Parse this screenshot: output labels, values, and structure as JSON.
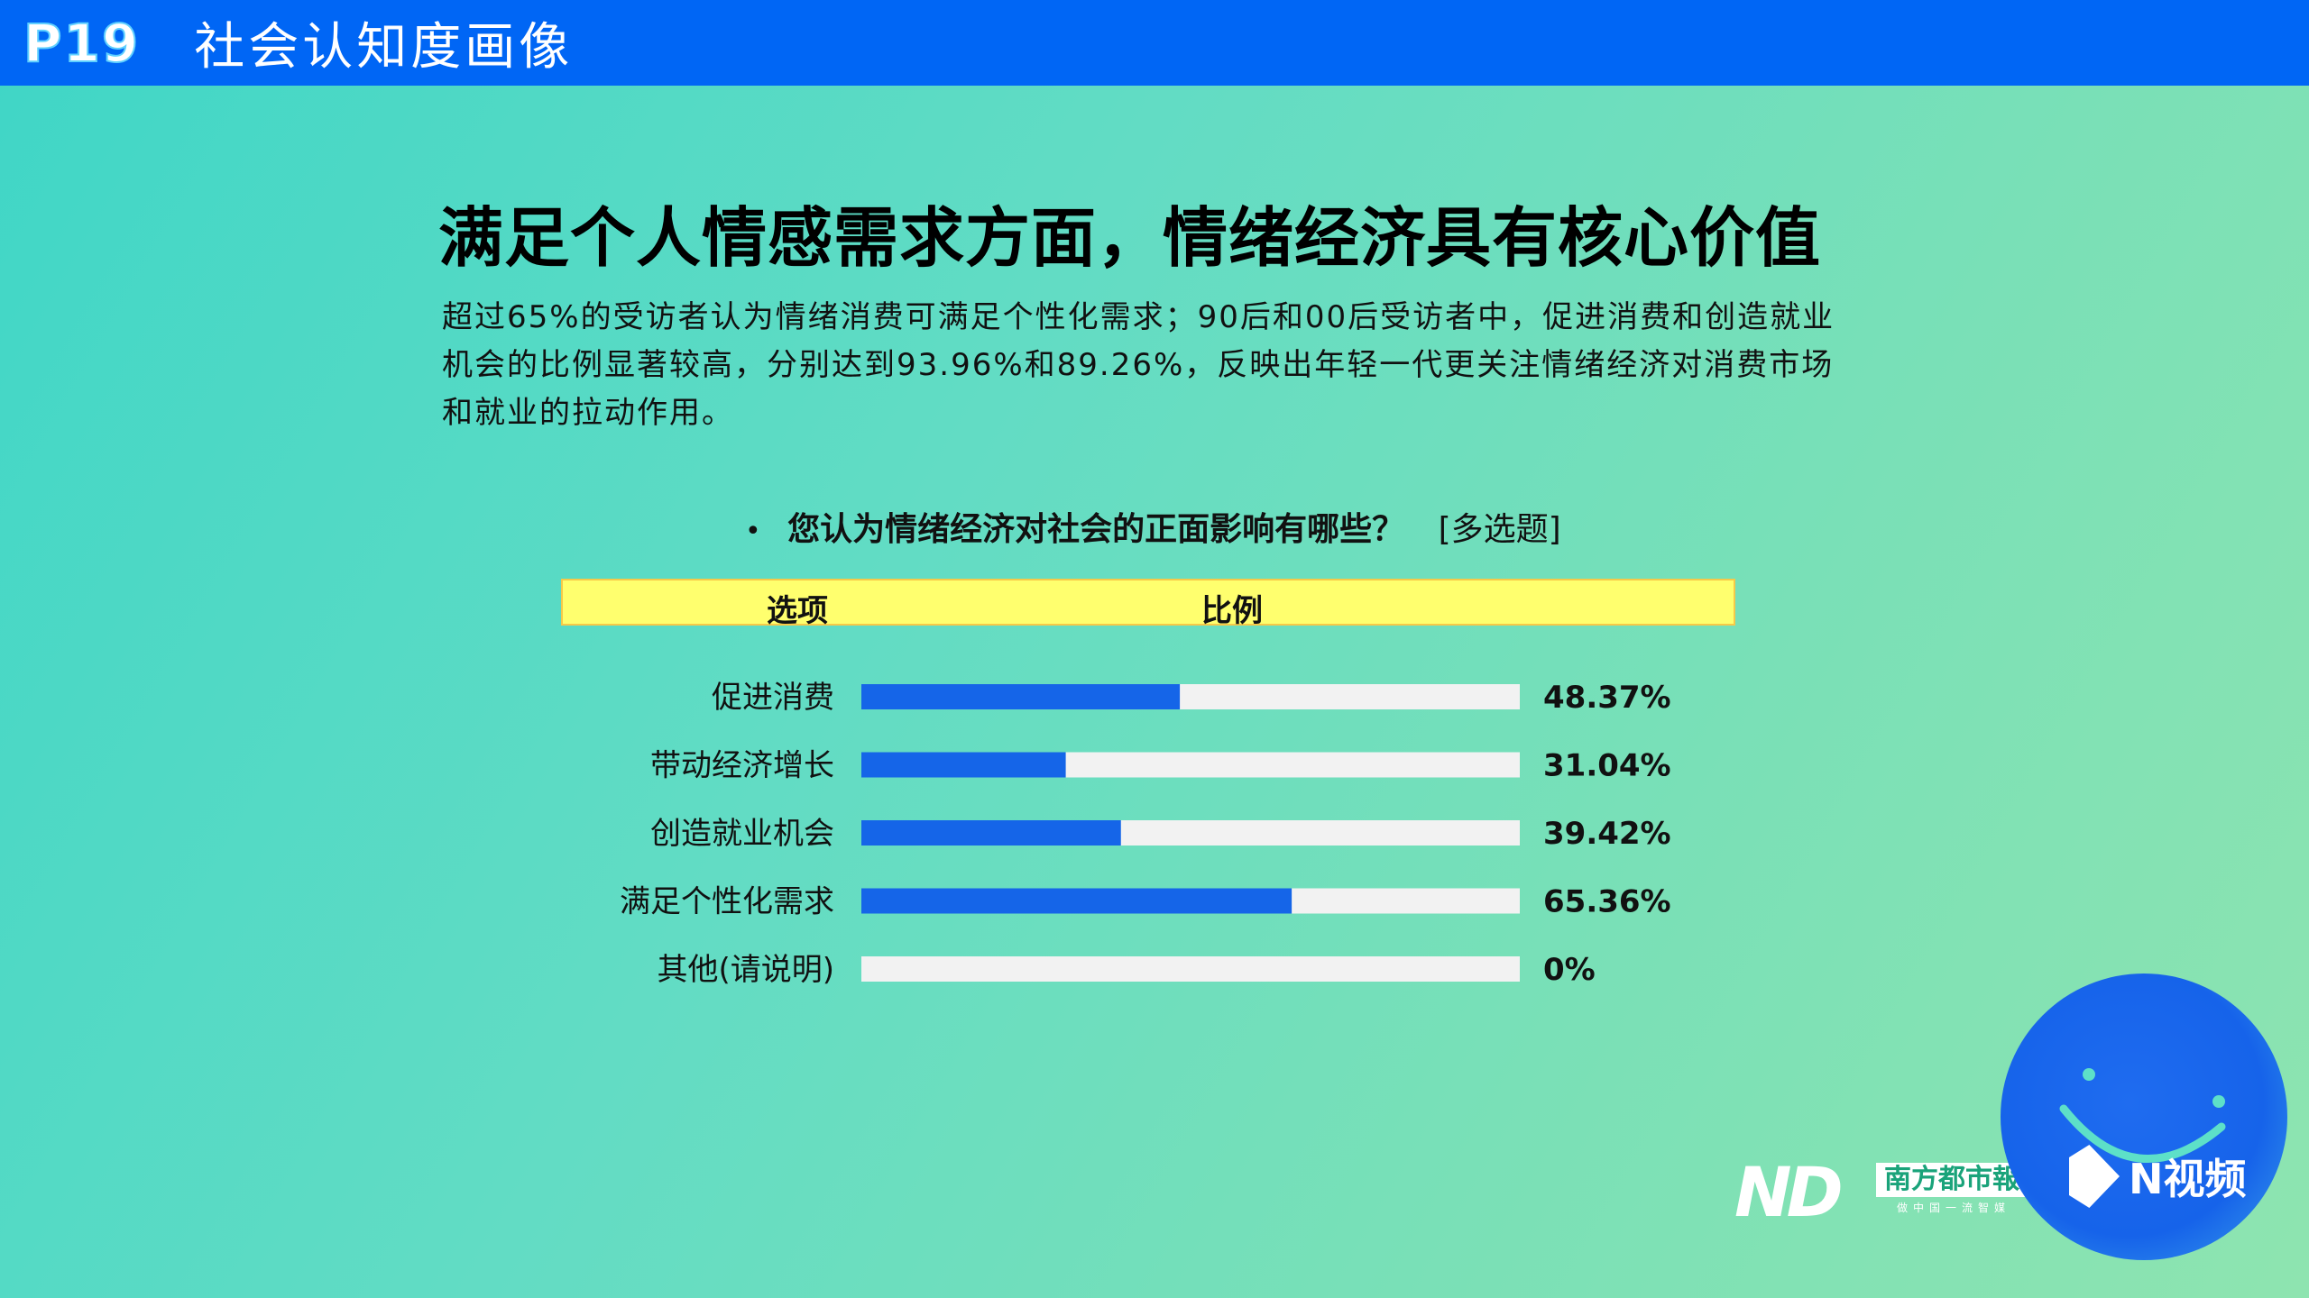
{
  "header": {
    "page_number": "P19",
    "section_title": "社会认知度画像"
  },
  "headline": "满足个人情感需求方面，情绪经济具有核心价值",
  "body_text": "超过65%的受访者认为情绪消费可满足个性化需求；90后和00后受访者中，促进消费和创造就业机会的比例显著较高，分别达到93.96%和89.26%，反映出年轻一代更关注情绪经济对消费市场和就业的拉动作用。",
  "question": {
    "bullet": "•",
    "text": "您认为情绪经济对社会的正面影响有哪些？",
    "tag": "[多选题]"
  },
  "table_header": {
    "option_label": "选项",
    "ratio_label": "比例"
  },
  "chart_data": {
    "type": "bar",
    "orientation": "horizontal",
    "categories": [
      "促进消费",
      "带动经济增长",
      "创造就业机会",
      "满足个性化需求",
      "其他(请说明)"
    ],
    "values": [
      48.37,
      31.04,
      39.42,
      65.36,
      0
    ],
    "value_labels": [
      "48.37%",
      "31.04%",
      "39.42%",
      "65.36%",
      "0%"
    ],
    "xlim": [
      0,
      100
    ],
    "bar_color": "#1565e8",
    "track_color": "#f2f2f2"
  },
  "logos": {
    "nd": "ND",
    "paper_name": "南方都市報",
    "paper_sub": "做中国一流智媒",
    "nvideo_text": "N视频"
  },
  "colors": {
    "header_bg": "#0066f5",
    "table_header_bg": "#ffff6e"
  }
}
